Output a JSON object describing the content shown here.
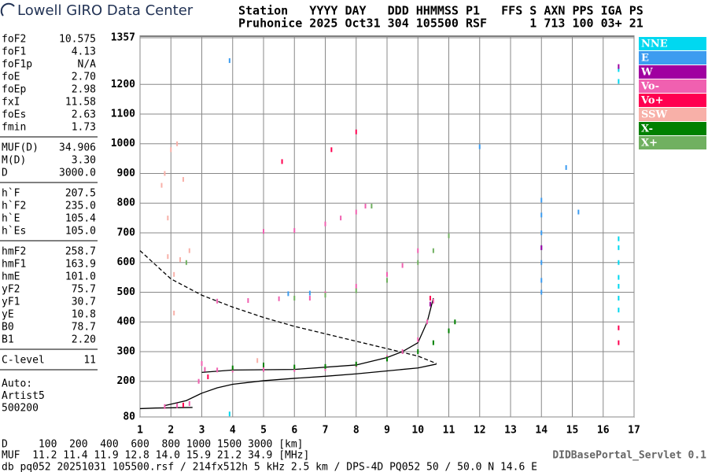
{
  "header": {
    "title": "Lowell GIRO Data Center",
    "lines": [
      "Station   YYYY DAY   DDD HHMMSS P1   FFS S AXN PPS IGA PS",
      "Pruhonice 2025 Oct31 304 105500 RSF      1 713 100 03+ 21"
    ]
  },
  "params": [
    [
      [
        "foF2",
        "10.575"
      ],
      [
        "foF1",
        "4.13"
      ],
      [
        "foF1p",
        "N/A"
      ],
      [
        "foE",
        "2.70"
      ],
      [
        "foEp",
        "2.98"
      ],
      [
        "fxI",
        "11.58"
      ],
      [
        "foEs",
        "2.63"
      ],
      [
        "fmin",
        "1.73"
      ]
    ],
    [
      [
        "MUF(D)",
        "34.906"
      ],
      [
        "M(D)",
        "3.30"
      ],
      [
        "D",
        "3000.0"
      ]
    ],
    [
      [
        "h`F",
        "207.5"
      ],
      [
        "h`F2",
        "235.0"
      ],
      [
        "h`E",
        "105.4"
      ],
      [
        "h`Es",
        "105.0"
      ]
    ],
    [
      [
        "hmF2",
        "258.7"
      ],
      [
        "hmF1",
        "163.9"
      ],
      [
        "hmE",
        "101.0"
      ],
      [
        "yF2",
        "75.7"
      ],
      [
        "yF1",
        "30.7"
      ],
      [
        "yE",
        "10.8"
      ],
      [
        "B0",
        "78.7"
      ],
      [
        "B1",
        "2.20"
      ]
    ],
    [
      [
        "C-level",
        "11"
      ]
    ]
  ],
  "artist": [
    "Auto:",
    "Artist5",
    "500200"
  ],
  "footer": {
    "lines": [
      "D     100  200  400  600  800 1000 1500 3000 [km]",
      "MUF  11.2 11.4 11.9 12.8 14.0 15.9 21.2 34.9 [MHz]",
      "db pq052 20251031 105500.rsf / 214fx512h 5 kHz 2.5 km / DPS-4D PQ052 50 / 50.0 N 14.6 E"
    ],
    "servlet": "DIDBasePortal_Servlet 0.1"
  },
  "chart_data": {
    "type": "scatter",
    "xlim": [
      1,
      17
    ],
    "xticks": [
      1,
      2,
      3,
      4,
      5,
      6,
      7,
      8,
      9,
      10,
      11,
      12,
      13,
      14,
      15,
      16,
      17
    ],
    "ylim": [
      80,
      1357
    ],
    "yticks": [
      80,
      200,
      300,
      400,
      500,
      600,
      700,
      800,
      900,
      1000,
      1100,
      1200,
      1357
    ],
    "grid": true,
    "series": [
      {
        "name": "NNE",
        "color": "#00d8f0",
        "x": [
          16.5,
          16.5,
          16.5,
          16.5,
          16.5,
          16.5,
          16.5,
          16.5,
          16.5,
          3.9
        ],
        "values": [
          680,
          650,
          600,
          550,
          520,
          480,
          440,
          1250,
          1210,
          90
        ]
      },
      {
        "name": "E",
        "color": "#3c9cf0",
        "x": [
          14,
          14,
          14,
          14,
          14,
          14,
          14,
          3.9,
          12,
          15.2,
          14.8,
          5.8,
          6.5
        ],
        "values": [
          810,
          760,
          700,
          650,
          600,
          540,
          500,
          1280,
          990,
          770,
          920,
          495,
          497
        ]
      },
      {
        "name": "W",
        "color": "#a000a0",
        "x": [
          10.4,
          14,
          16.5
        ],
        "values": [
          460,
          650,
          1260
        ]
      },
      {
        "name": "Vo-",
        "color": "#f060b0",
        "x": [
          1.8,
          2.2,
          2.6,
          2.9,
          3.0,
          3.1,
          3.5,
          4,
          5,
          6,
          7,
          8,
          9,
          9.5,
          10,
          10.3,
          10.5,
          3.5,
          4.5,
          5.5,
          6.5,
          7,
          8,
          9,
          9.5,
          10,
          5,
          6,
          7,
          7.5,
          8,
          8.3
        ],
        "values": [
          115,
          118,
          125,
          200,
          260,
          240,
          238,
          238,
          240,
          240,
          243,
          255,
          280,
          300,
          340,
          400,
          470,
          470,
          472,
          478,
          480,
          495,
          520,
          560,
          590,
          640,
          705,
          708,
          730,
          750,
          770,
          790
        ]
      },
      {
        "name": "Vo+",
        "color": "#ff0050",
        "x": [
          16.5,
          16.5,
          10.4,
          8,
          5.6,
          3.2,
          2.4,
          7.2
        ],
        "values": [
          380,
          330,
          480,
          1040,
          940,
          215,
          120,
          980
        ]
      },
      {
        "name": "SSW",
        "color": "#f8b0a8",
        "x": [
          1.8,
          2,
          1.9,
          2.1,
          2.3,
          2.1,
          2.6,
          1.9,
          2.4,
          4.8,
          2.2,
          1.7
        ],
        "values": [
          900,
          980,
          620,
          560,
          610,
          430,
          640,
          750,
          880,
          270,
          1000,
          860
        ]
      },
      {
        "name": "X-",
        "color": "#008000",
        "x": [
          4,
          5,
          6,
          7,
          8,
          9,
          10,
          10.5,
          11,
          11.2
        ],
        "values": [
          245,
          255,
          248,
          250,
          258,
          275,
          300,
          330,
          370,
          400
        ]
      },
      {
        "name": "X+",
        "color": "#70b060",
        "x": [
          6,
          7,
          8,
          9,
          10,
          10.5,
          11,
          8.5,
          2.5
        ],
        "values": [
          480,
          490,
          505,
          540,
          600,
          640,
          690,
          790,
          600
        ]
      }
    ],
    "lines": [
      {
        "dash": false,
        "x": [
          1,
          1.5,
          2.7
        ],
        "values": [
          108,
          110,
          112
        ]
      },
      {
        "dash": false,
        "x": [
          1.8,
          2.5,
          3,
          3.5,
          4,
          5,
          6,
          7,
          8,
          9,
          10,
          10.6
        ],
        "values": [
          118,
          135,
          160,
          178,
          190,
          202,
          210,
          217,
          225,
          235,
          245,
          258
        ]
      },
      {
        "dash": false,
        "x": [
          3,
          4,
          6,
          8,
          9,
          9.5,
          10,
          10.3,
          10.5
        ],
        "values": [
          230,
          238,
          240,
          255,
          280,
          300,
          330,
          400,
          480
        ]
      },
      {
        "dash": true,
        "x": [
          1,
          2,
          3,
          4,
          5,
          6,
          7,
          8,
          9,
          10,
          10.6
        ],
        "values": [
          640,
          545,
          490,
          450,
          415,
          385,
          360,
          335,
          310,
          285,
          260
        ]
      }
    ]
  }
}
